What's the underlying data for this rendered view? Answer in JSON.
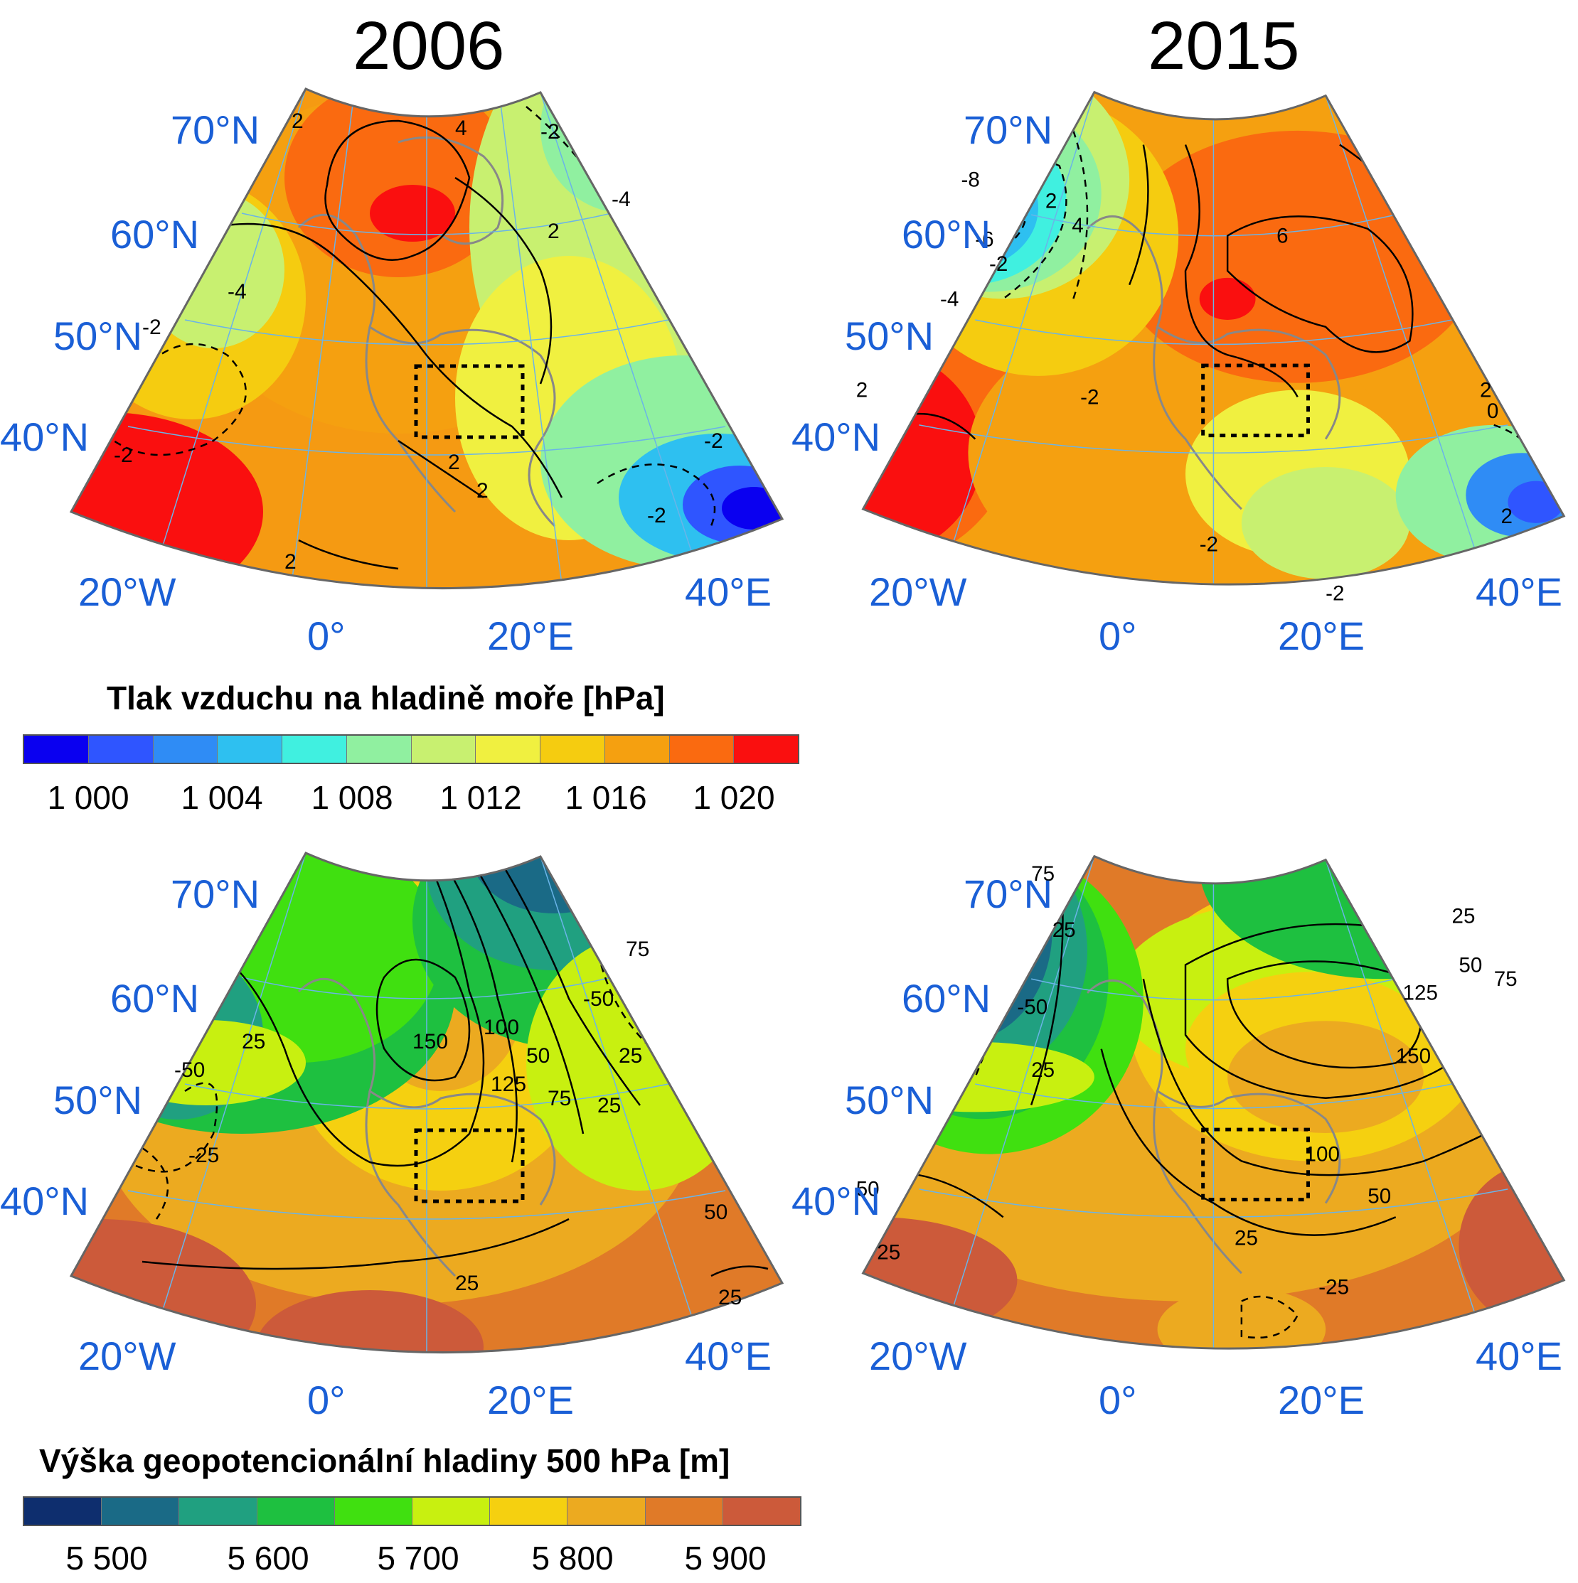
{
  "panels": {
    "year_left": "2006",
    "year_right": "2015"
  },
  "axis_labels": {
    "lat70": "70°N",
    "lat60": "60°N",
    "lat50": "50°N",
    "lat40": "40°N",
    "lon20w": "20°W",
    "lon0": "0°",
    "lon20e": "20°E",
    "lon40e": "40°E"
  },
  "legend_slp": {
    "title": "Tlak vzduchu na hladině moře [hPa]",
    "ticks": [
      "1 000",
      "1 004",
      "1 008",
      "1 012",
      "1 016",
      "1 020"
    ],
    "colors": [
      "#0a00f0",
      "#2f55ff",
      "#2f8cf5",
      "#2ec0f0",
      "#40f0e0",
      "#90f0a0",
      "#c8f070",
      "#f0f040",
      "#f5cc10",
      "#f5a010",
      "#fa6a10",
      "#fa0f0f"
    ]
  },
  "legend_z500": {
    "title": "Výška geopotencionální hladiny 500 hPa [m]",
    "ticks": [
      "5 500",
      "5 600",
      "5 700",
      "5 800",
      "5 900"
    ],
    "colors": [
      "#0e2e6e",
      "#1a6a86",
      "#20a080",
      "#1ec040",
      "#40e010",
      "#c8f010",
      "#f5d010",
      "#ecaa20",
      "#e07a28",
      "#cc5a3a"
    ]
  },
  "contours": {
    "slp_2006": [
      "4",
      "2",
      "-2",
      "-4",
      "-4",
      "2",
      "-2",
      "-2",
      "2",
      "2",
      "2",
      "-2",
      "-2"
    ],
    "slp_2015": [
      "-8",
      "-6",
      "-4",
      "-2",
      "2",
      "4",
      "6",
      "2",
      "-2",
      "2",
      "0",
      "-2",
      "2",
      "-2"
    ],
    "z500_2006": [
      "25",
      "-50",
      "-25",
      "150",
      "100",
      "125",
      "50",
      "75",
      "-50",
      "25",
      "25",
      "75",
      "50",
      "25",
      "25"
    ],
    "z500_2015": [
      "75",
      "25",
      "-50",
      "25",
      "25",
      "50",
      "75",
      "125",
      "150",
      "100",
      "50",
      "25",
      "-25",
      "50",
      "25"
    ]
  }
}
